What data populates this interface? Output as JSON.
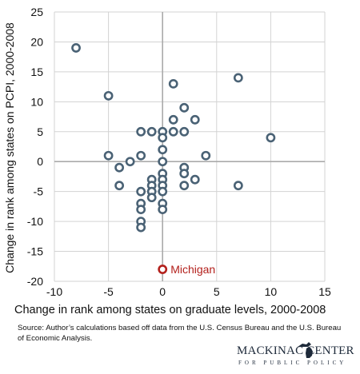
{
  "chart_data": {
    "type": "scatter",
    "xlabel": "Change in rank among states on graduate levels, 2000-2008",
    "ylabel": "Change in rank among states on PCPI, 2000-2008",
    "xlim": [
      -10,
      15
    ],
    "ylim": [
      -20,
      25
    ],
    "xticks": [
      "-10",
      "-5",
      "0",
      "5",
      "10",
      "15"
    ],
    "yticks": [
      "25",
      "20",
      "15",
      "10",
      "5",
      "0",
      "-5",
      "-10",
      "-15",
      "-20"
    ],
    "grid": true,
    "marker_color": "#4a6275",
    "highlight_color": "#b3201c",
    "points": [
      {
        "x": -8,
        "y": 19
      },
      {
        "x": -5,
        "y": 11
      },
      {
        "x": -5,
        "y": 1
      },
      {
        "x": -4,
        "y": -1
      },
      {
        "x": -4,
        "y": -4
      },
      {
        "x": -3,
        "y": 0
      },
      {
        "x": -2,
        "y": 5
      },
      {
        "x": -2,
        "y": 1
      },
      {
        "x": -2,
        "y": -5
      },
      {
        "x": -2,
        "y": -7
      },
      {
        "x": -2,
        "y": -8
      },
      {
        "x": -2,
        "y": -10
      },
      {
        "x": -2,
        "y": -11
      },
      {
        "x": -1,
        "y": 5
      },
      {
        "x": -1,
        "y": -3
      },
      {
        "x": -1,
        "y": -4
      },
      {
        "x": -1,
        "y": -5
      },
      {
        "x": -1,
        "y": -6
      },
      {
        "x": 0,
        "y": 5
      },
      {
        "x": 0,
        "y": 4
      },
      {
        "x": 0,
        "y": 2
      },
      {
        "x": 0,
        "y": 0
      },
      {
        "x": 0,
        "y": -2
      },
      {
        "x": 0,
        "y": -3
      },
      {
        "x": 0,
        "y": -4
      },
      {
        "x": 0,
        "y": -5
      },
      {
        "x": 0,
        "y": -7
      },
      {
        "x": 0,
        "y": -8
      },
      {
        "x": 1,
        "y": 13
      },
      {
        "x": 1,
        "y": 7
      },
      {
        "x": 1,
        "y": 5
      },
      {
        "x": 2,
        "y": 9
      },
      {
        "x": 2,
        "y": 5
      },
      {
        "x": 2,
        "y": -1
      },
      {
        "x": 2,
        "y": -2
      },
      {
        "x": 2,
        "y": -4
      },
      {
        "x": 3,
        "y": 7
      },
      {
        "x": 3,
        "y": -3
      },
      {
        "x": 4,
        "y": 1
      },
      {
        "x": 7,
        "y": 14
      },
      {
        "x": 7,
        "y": -4
      },
      {
        "x": 10,
        "y": 4
      }
    ],
    "highlight": {
      "x": 0,
      "y": -18,
      "label": "Michigan"
    }
  },
  "source": "Source: Author’s calculations based off data from the U.S. Census Bureau and the U.S. Bureau of Economic Analysis.",
  "logo": {
    "name": "MACKINAC CENTER",
    "subtitle": "FOR PUBLIC POLICY"
  }
}
